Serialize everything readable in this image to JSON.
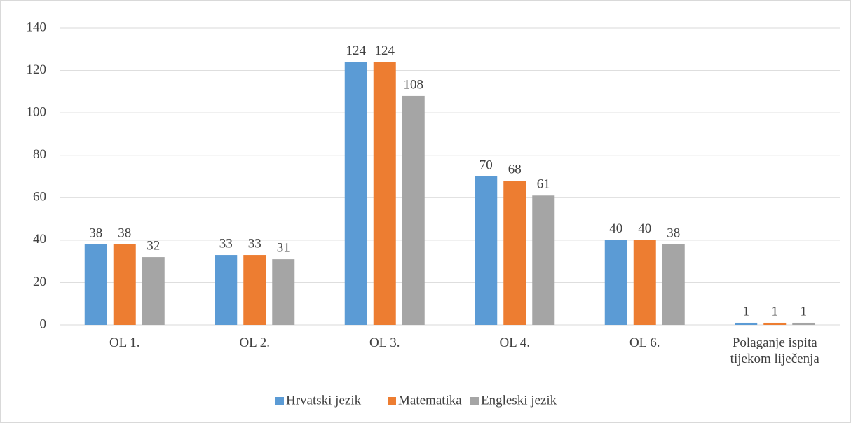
{
  "chart_data": {
    "type": "bar",
    "categories": [
      "OL 1.",
      "OL 2.",
      "OL 3.",
      "OL 4.",
      "OL 6.",
      "Polaganje ispita tijekom liječenja"
    ],
    "series": [
      {
        "name": "Hrvatski jezik",
        "color": "#5b9bd5",
        "values": [
          38,
          33,
          124,
          70,
          40,
          1
        ]
      },
      {
        "name": "Matematika",
        "color": "#ed7d31",
        "values": [
          38,
          33,
          124,
          68,
          40,
          1
        ]
      },
      {
        "name": "Engleski jezik",
        "color": "#a5a5a5",
        "values": [
          32,
          31,
          108,
          61,
          38,
          1
        ]
      }
    ],
    "ylim": [
      0,
      140
    ],
    "yticks": [
      0,
      20,
      40,
      60,
      80,
      100,
      120,
      140
    ],
    "grid": true,
    "legend": "bottom"
  }
}
